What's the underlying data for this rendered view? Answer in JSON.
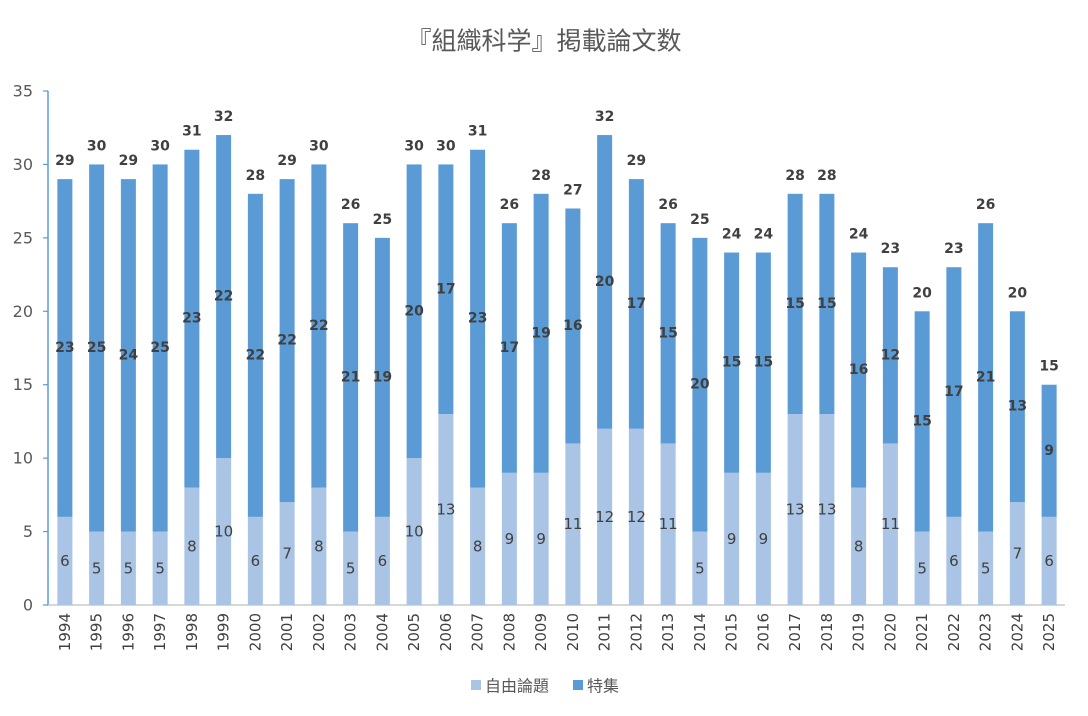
{
  "chart_data": {
    "type": "bar",
    "stacked": true,
    "title": "『組織科学』掲載論文数",
    "xlabel": "",
    "ylabel": "",
    "ylim": [
      0,
      35
    ],
    "yticks": [
      0,
      5,
      10,
      15,
      20,
      25,
      30,
      35
    ],
    "grid": false,
    "legend": "bottom",
    "categories": [
      "1994",
      "1995",
      "1996",
      "1997",
      "1998",
      "1999",
      "2000",
      "2001",
      "2002",
      "2003",
      "2004",
      "2005",
      "2006",
      "2007",
      "2008",
      "2009",
      "2010",
      "2011",
      "2012",
      "2013",
      "2014",
      "2015",
      "2016",
      "2017",
      "2018",
      "2019",
      "2020",
      "2021",
      "2022",
      "2023",
      "2024",
      "2025"
    ],
    "series": [
      {
        "name": "自由論題",
        "color": "#a9c4e4",
        "values": [
          6,
          5,
          5,
          5,
          8,
          10,
          6,
          7,
          8,
          5,
          6,
          10,
          13,
          8,
          9,
          9,
          11,
          12,
          12,
          11,
          5,
          9,
          9,
          13,
          13,
          8,
          11,
          5,
          6,
          5,
          7,
          6
        ]
      },
      {
        "name": "特集",
        "color": "#5b9bd5",
        "values": [
          23,
          25,
          24,
          25,
          23,
          22,
          22,
          22,
          22,
          21,
          19,
          20,
          17,
          23,
          17,
          19,
          16,
          20,
          17,
          15,
          20,
          15,
          15,
          15,
          15,
          16,
          12,
          15,
          17,
          21,
          13,
          9
        ]
      }
    ],
    "totals": [
      29,
      30,
      29,
      30,
      31,
      32,
      28,
      29,
      30,
      26,
      25,
      30,
      30,
      31,
      26,
      28,
      27,
      32,
      29,
      26,
      25,
      24,
      24,
      28,
      28,
      24,
      23,
      20,
      23,
      26,
      20,
      15
    ]
  }
}
